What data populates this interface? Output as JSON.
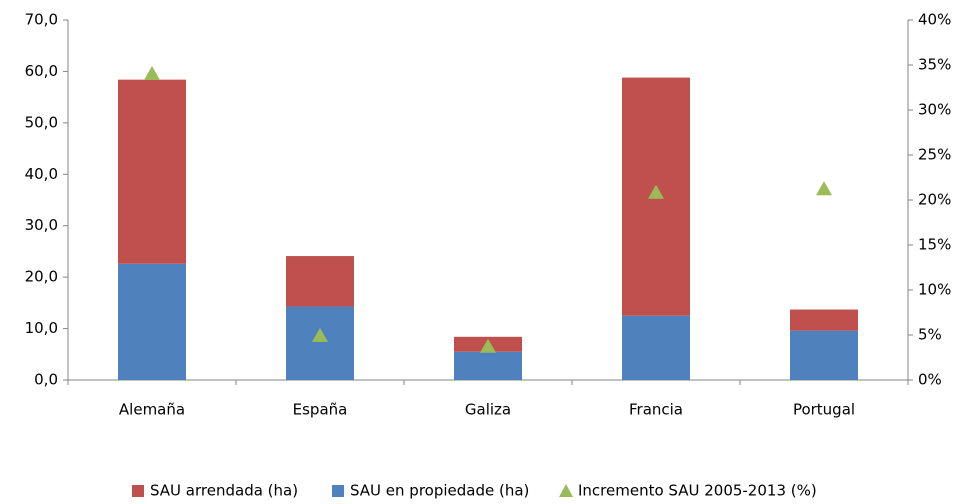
{
  "chart_data": {
    "type": "bar",
    "categories": [
      "Alemaña",
      "España",
      "Galiza",
      "Francia",
      "Portugal"
    ],
    "series": [
      {
        "name": "SAU arrendada (ha)",
        "color": "#c0504d",
        "values": [
          35.8,
          9.8,
          2.9,
          46.3,
          4.1
        ]
      },
      {
        "name": "SAU en propiedade (ha)",
        "color": "#4f81bd",
        "values": [
          22.6,
          14.3,
          5.5,
          12.5,
          9.6
        ]
      },
      {
        "name": "Incremento SAU 2005-2013 (%)",
        "color": "#9bbb59",
        "type": "scatter",
        "axis": "y2",
        "values": [
          34,
          4.9,
          3.7,
          20.8,
          21.2
        ]
      }
    ],
    "ylim": [
      0,
      70
    ],
    "yticks": [
      {
        "value": 0,
        "label": "0,0"
      },
      {
        "value": 10,
        "label": "10,0"
      },
      {
        "value": 20,
        "label": "20,0"
      },
      {
        "value": 30,
        "label": "30,0"
      },
      {
        "value": 40,
        "label": "40,0"
      },
      {
        "value": 50,
        "label": "50,0"
      },
      {
        "value": 60,
        "label": "60,0"
      },
      {
        "value": 70,
        "label": "70,0"
      }
    ],
    "y2lim": [
      0,
      40
    ],
    "y2ticks": [
      {
        "value": 0,
        "label": "0%"
      },
      {
        "value": 5,
        "label": "5%"
      },
      {
        "value": 10,
        "label": "10%"
      },
      {
        "value": 15,
        "label": "15%"
      },
      {
        "value": 20,
        "label": "20%"
      },
      {
        "value": 25,
        "label": "25%"
      },
      {
        "value": 30,
        "label": "30%"
      },
      {
        "value": 35,
        "label": "35%"
      },
      {
        "value": 40,
        "label": "40%"
      }
    ],
    "legend": "bottom"
  }
}
